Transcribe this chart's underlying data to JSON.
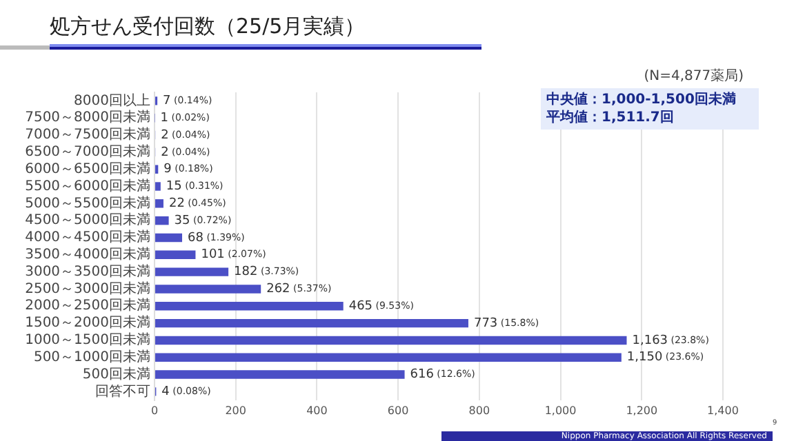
{
  "chart_data": {
    "type": "bar",
    "orientation": "horizontal",
    "title": "処方せん受付回数（25/5月実績）",
    "categories": [
      "8000回以上",
      "7500～8000回未満",
      "7000～7500回未満",
      "6500～7000回未満",
      "6000～6500回未満",
      "5500～6000回未満",
      "5000～5500回未満",
      "4500～5000回未満",
      "4000～4500回未満",
      "3500～4000回未満",
      "3000～3500回未満",
      "2500～3000回未満",
      "2000～2500回未満",
      "1500～2000回未満",
      "1000～1500回未満",
      "500～1000回未満",
      "500回未満",
      "回答不可"
    ],
    "values": [
      7,
      1,
      2,
      2,
      9,
      15,
      22,
      35,
      68,
      101,
      182,
      262,
      465,
      773,
      1163,
      1150,
      616,
      4
    ],
    "value_labels": [
      "7 (0.14%)",
      "1 (0.02%)",
      "2 (0.04%)",
      "2 (0.04%)",
      "9 (0.18%)",
      "15 (0.31%)",
      "22 (0.45%)",
      "35 (0.72%)",
      "68 (1.39%)",
      "101 (2.07%)",
      "182 (3.73%)",
      "262 (5.37%)",
      "465 (9.53%)",
      "773 (15.8%)",
      "1,163 (23.8%)",
      "1,150 (23.6%)",
      "616 (12.6%)",
      "4 (0.08%)"
    ],
    "color": "#4b4fc6",
    "xlim": [
      0,
      1400
    ],
    "xticks": [
      {
        "value": 0,
        "label": "0"
      },
      {
        "value": 200,
        "label": "200"
      },
      {
        "value": 400,
        "label": "400"
      },
      {
        "value": 600,
        "label": "600"
      },
      {
        "value": 800,
        "label": "800"
      },
      {
        "value": 1000,
        "label": "1,000"
      },
      {
        "value": 1200,
        "label": "1,200"
      },
      {
        "value": 1400,
        "label": "1,400"
      }
    ],
    "grid": "x",
    "legend": false,
    "annotations": [
      "(N=4,877薬局)",
      "中央値：1,000-1,500回未満",
      "平均値：1,511.7回",
      "Nippon Pharmacy Association All Rights Reserved",
      "9"
    ]
  }
}
